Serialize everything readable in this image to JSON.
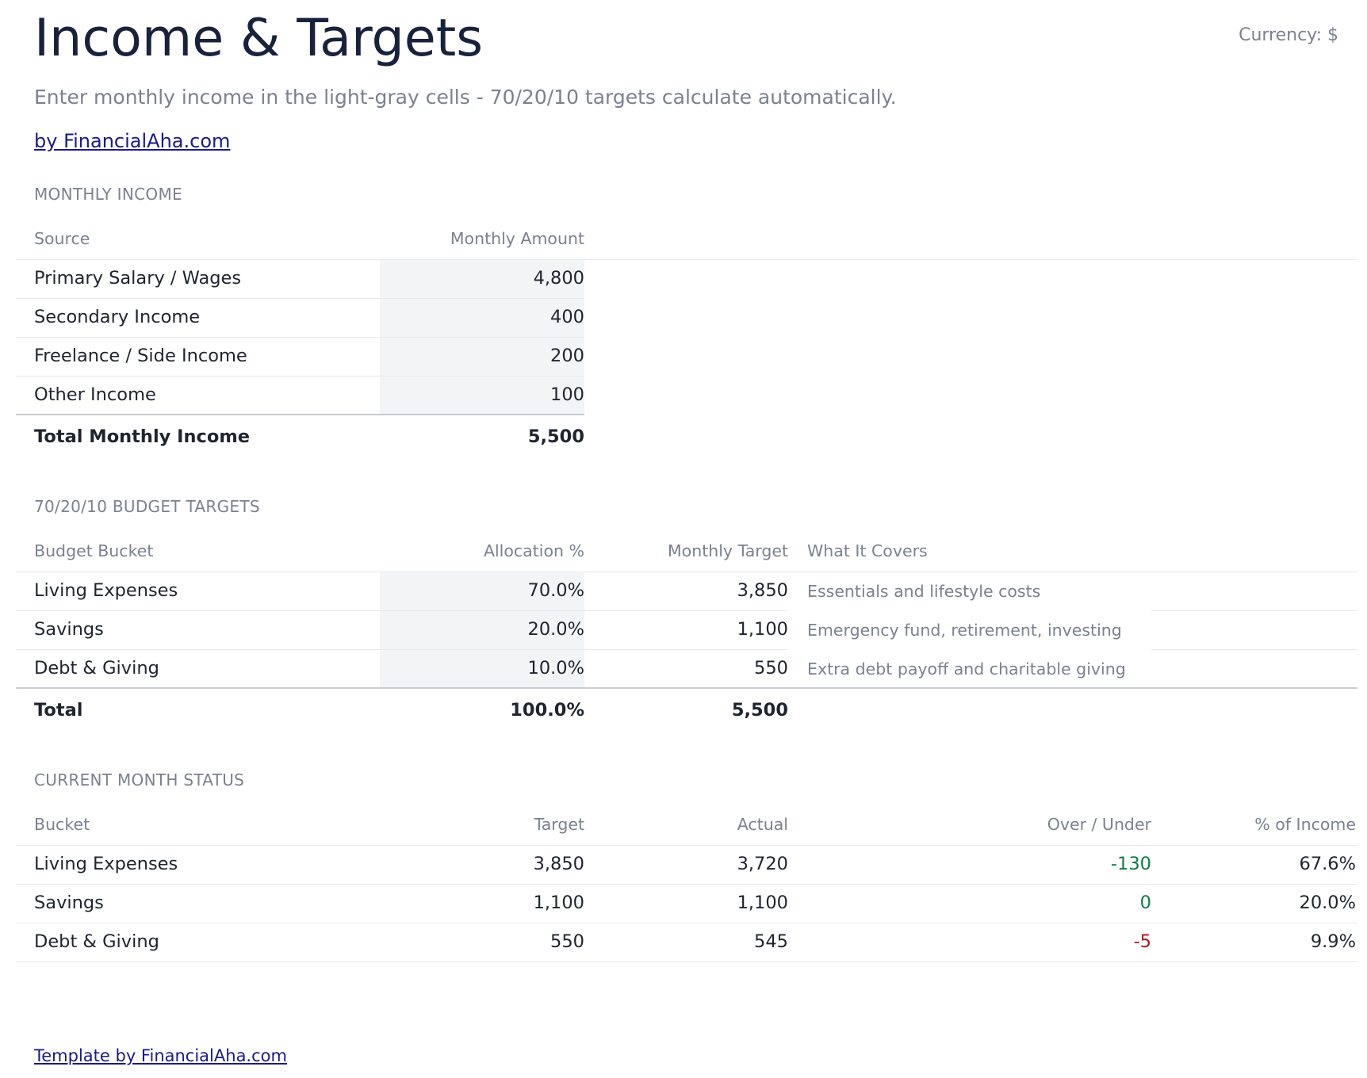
{
  "title": "Income & Targets",
  "currency_label": "Currency: $",
  "subtitle": "Enter monthly income in the light-gray cells - 70/20/10 targets calculate automatically.",
  "byline": "by FinancialAha.com",
  "income": {
    "section_label": "MONTHLY INCOME",
    "headers": {
      "source": "Source",
      "amount": "Monthly Amount"
    },
    "rows": [
      {
        "source": "Primary Salary / Wages",
        "amount": "4,800"
      },
      {
        "source": "Secondary Income",
        "amount": "400"
      },
      {
        "source": "Freelance / Side Income",
        "amount": "200"
      },
      {
        "source": "Other Income",
        "amount": "100"
      }
    ],
    "total": {
      "label": "Total Monthly Income",
      "amount": "5,500"
    }
  },
  "targets": {
    "section_label": "70/20/10 BUDGET TARGETS",
    "headers": {
      "bucket": "Budget Bucket",
      "allocation": "Allocation %",
      "target": "Monthly Target",
      "covers": "What It Covers"
    },
    "rows": [
      {
        "bucket": "Living Expenses",
        "allocation": "70.0%",
        "target": "3,850",
        "covers": "Essentials and lifestyle costs"
      },
      {
        "bucket": "Savings",
        "allocation": "20.0%",
        "target": "1,100",
        "covers": "Emergency fund, retirement, investing"
      },
      {
        "bucket": "Debt & Giving",
        "allocation": "10.0%",
        "target": "550",
        "covers": "Extra debt payoff and charitable giving"
      }
    ],
    "total": {
      "label": "Total",
      "allocation": "100.0%",
      "target": "5,500"
    }
  },
  "status": {
    "section_label": "CURRENT MONTH STATUS",
    "headers": {
      "bucket": "Bucket",
      "target": "Target",
      "actual": "Actual",
      "over_under": "Over / Under",
      "pct_income": "% of Income"
    },
    "rows": [
      {
        "bucket": "Living Expenses",
        "target": "3,850",
        "actual": "3,720",
        "over_under": "-130",
        "pct_income": "67.6%"
      },
      {
        "bucket": "Savings",
        "target": "1,100",
        "actual": "1,100",
        "over_under": "0",
        "pct_income": "20.0%"
      },
      {
        "bucket": "Debt & Giving",
        "target": "550",
        "actual": "545",
        "over_under": "-5",
        "pct_income": "9.9%"
      }
    ]
  },
  "colors": {
    "under_budget": "#0e7a4a",
    "over_budget": "#b3121b",
    "input_cell": "#f3f4f6"
  },
  "footer_link": "Template by FinancialAha.com"
}
